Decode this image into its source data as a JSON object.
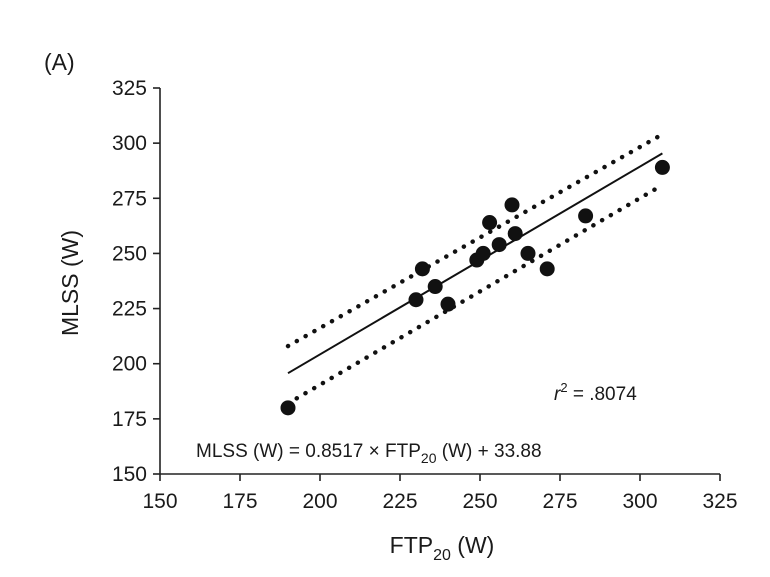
{
  "chart_data": {
    "type": "scatter",
    "panel_label": "(A)",
    "title": "",
    "xlabel": {
      "main": "FTP",
      "sub": "20",
      "unit": " (W)"
    },
    "ylabel": "MLSS (W)",
    "xlim": [
      150,
      325
    ],
    "ylim": [
      150,
      325
    ],
    "xticks": [
      150,
      175,
      200,
      225,
      250,
      275,
      300,
      325
    ],
    "yticks": [
      150,
      175,
      200,
      225,
      250,
      275,
      300,
      325
    ],
    "grid": false,
    "points": [
      {
        "x": 190,
        "y": 180
      },
      {
        "x": 230,
        "y": 229
      },
      {
        "x": 232,
        "y": 243
      },
      {
        "x": 236,
        "y": 235
      },
      {
        "x": 240,
        "y": 227
      },
      {
        "x": 249,
        "y": 247
      },
      {
        "x": 251,
        "y": 250
      },
      {
        "x": 253,
        "y": 264
      },
      {
        "x": 256,
        "y": 254
      },
      {
        "x": 260,
        "y": 272
      },
      {
        "x": 261,
        "y": 259
      },
      {
        "x": 265,
        "y": 250
      },
      {
        "x": 271,
        "y": 243
      },
      {
        "x": 283,
        "y": 267
      },
      {
        "x": 307,
        "y": 289
      }
    ],
    "regression": {
      "slope": 0.8517,
      "intercept": 33.88,
      "x_range": [
        190,
        307
      ],
      "r_squared_value": ".8074",
      "equation": {
        "lhs": "MLSS (W) = 0.8517 × FTP",
        "sub": "20",
        "rhs": " (W) + 33.88"
      }
    },
    "prediction_band": {
      "style": "dotted",
      "upper": [
        {
          "x": 190,
          "y": 208
        },
        {
          "x": 307,
          "y": 304
        }
      ],
      "lower": [
        {
          "x": 190,
          "y": 182
        },
        {
          "x": 307,
          "y": 281
        }
      ]
    },
    "colors": {
      "marks": "#111111",
      "axis": "#222222"
    }
  }
}
